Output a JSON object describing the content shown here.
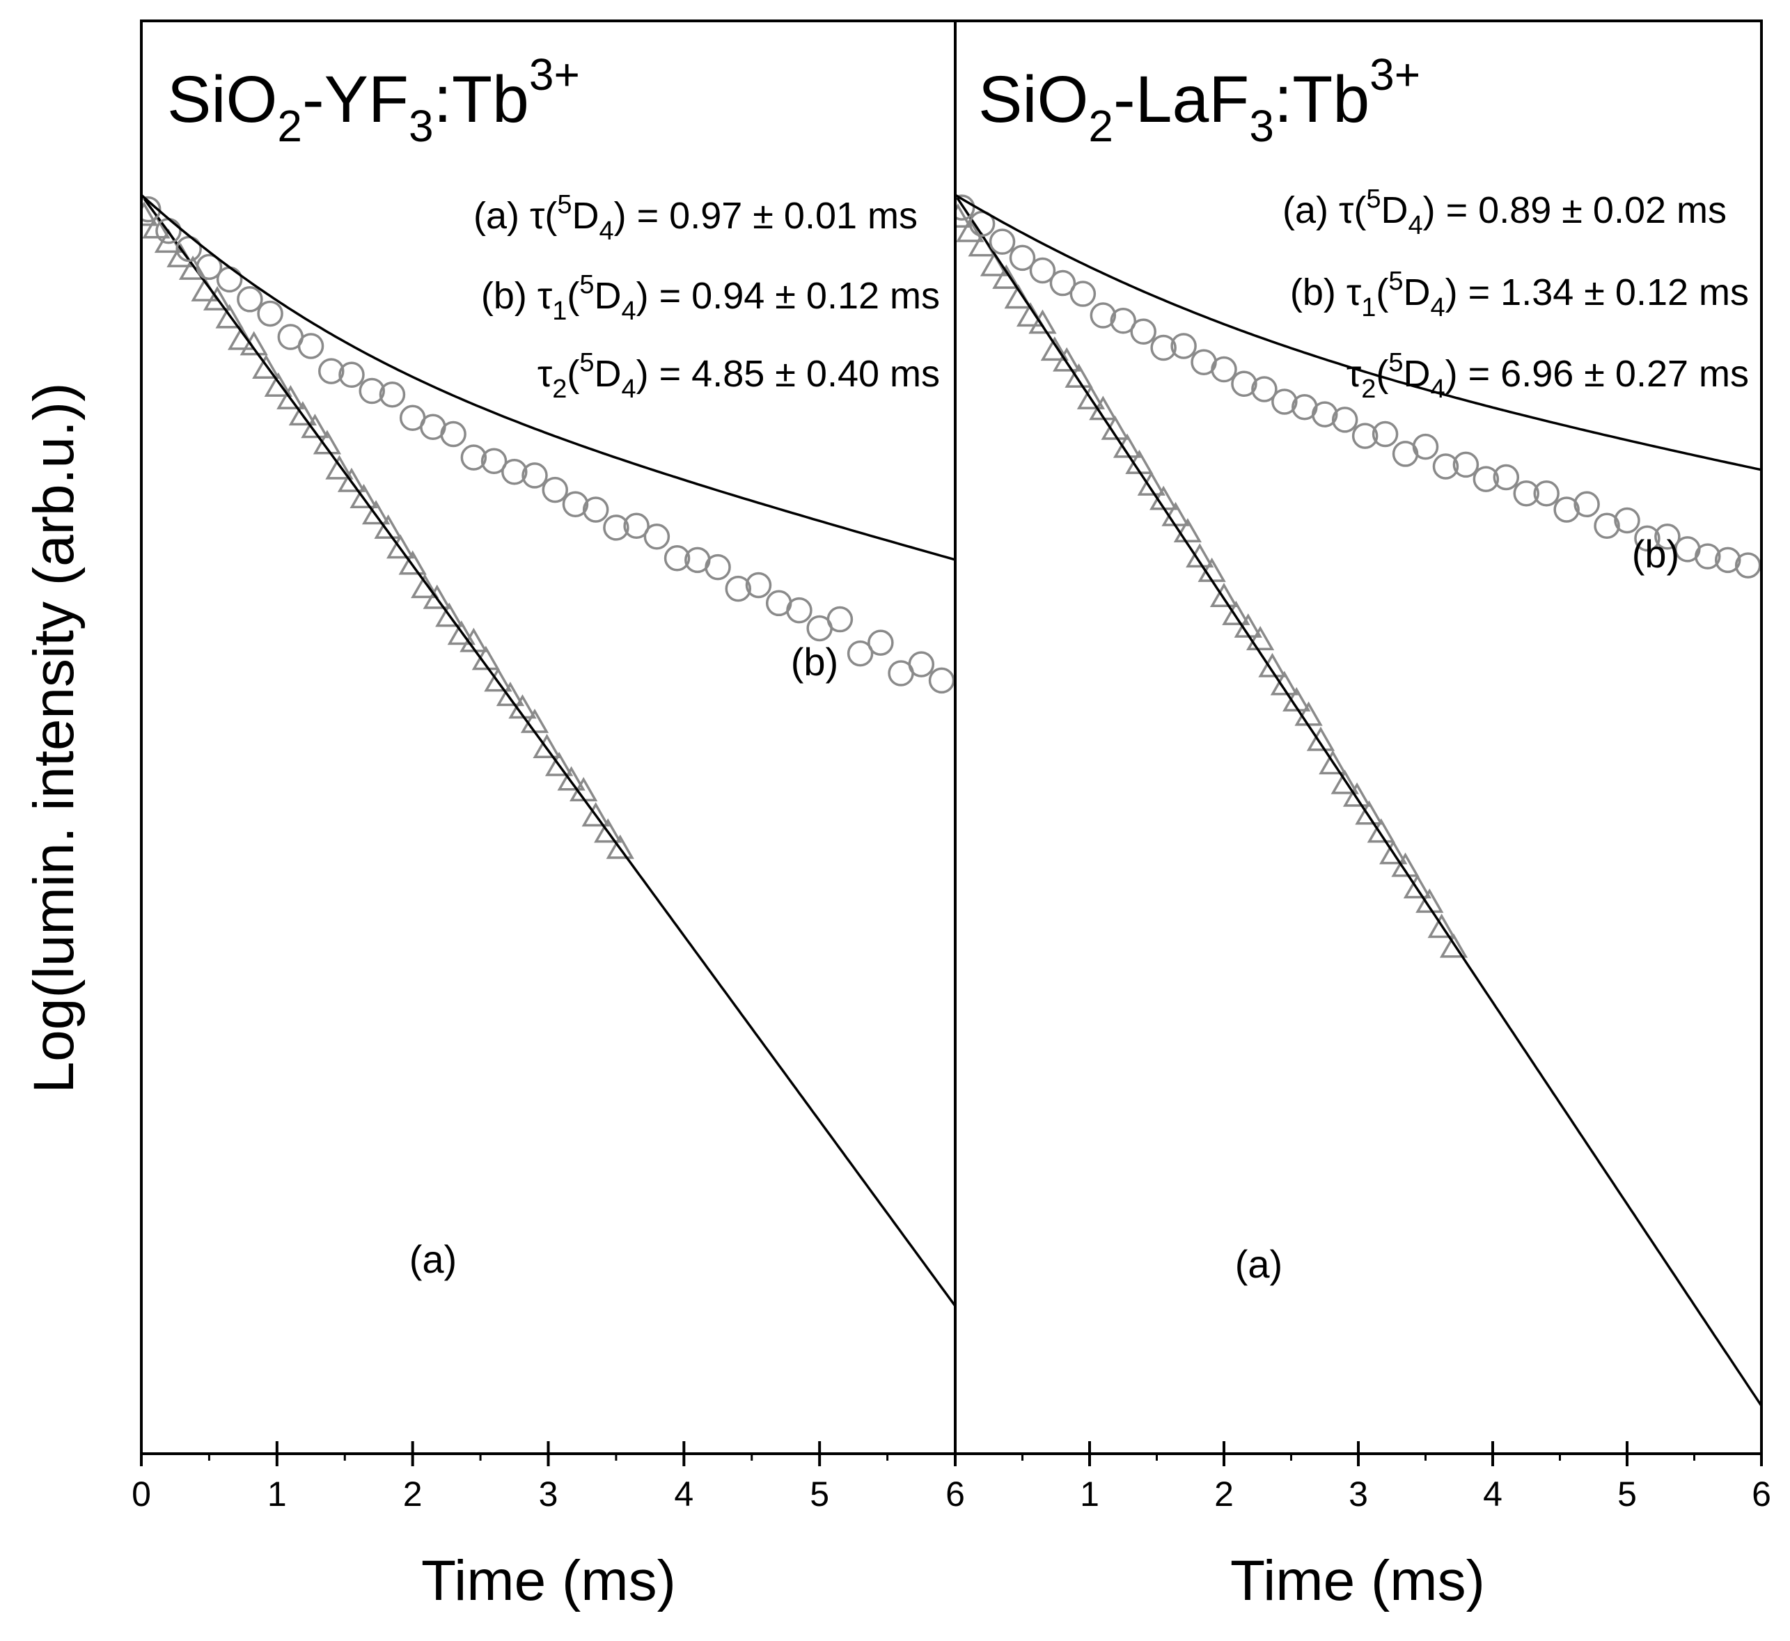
{
  "colors": {
    "marker": "#8a8a8a",
    "fit": "#000000",
    "frame": "#000000"
  },
  "chart_data": [
    {
      "type": "scatter",
      "title": {
        "main": "SiO",
        "sub1": "2",
        "mid": "-YF",
        "sub2": "3",
        "end": ":Tb",
        "sup": "3+"
      },
      "xlabel": "Time (ms)",
      "ylabel": "Log(lumin. intensity (arb.u.))",
      "xlim": [
        0,
        6
      ],
      "xticks": [
        "0",
        "1",
        "2",
        "3",
        "4",
        "5",
        "6"
      ],
      "yticks": [],
      "ylim": [
        -7,
        0.6
      ],
      "legend": "none",
      "annotations": [
        {
          "prefix": "(a) ",
          "sym": "τ",
          "sub": "",
          "open": "(",
          "sup": "5",
          "D": "D",
          "dsub": "4",
          "rest": ") = 0.97 ± 0.01 ms"
        },
        {
          "prefix": "(b) ",
          "sym": "τ",
          "sub": "1",
          "open": "(",
          "sup": "5",
          "D": "D",
          "dsub": "4",
          "rest": ") = 0.94 ± 0.12 ms"
        },
        {
          "prefix": "",
          "sym": "τ",
          "sub": "2",
          "open": "(",
          "sup": "5",
          "D": "D",
          "dsub": "4",
          "rest": ") = 4.85 ± 0.40 ms"
        }
      ],
      "series": [
        {
          "label": "(a)",
          "marker": "triangle-open",
          "fit": {
            "model": "single-exponential",
            "tau_ms": 0.97
          },
          "x": [
            0.02,
            0.11,
            0.2,
            0.29,
            0.38,
            0.47,
            0.56,
            0.65,
            0.74,
            0.83,
            0.92,
            1.01,
            1.1,
            1.19,
            1.28,
            1.37,
            1.46,
            1.55,
            1.64,
            1.73,
            1.82,
            1.91,
            2.0,
            2.09,
            2.18,
            2.27,
            2.36,
            2.45,
            2.54,
            2.63,
            2.72,
            2.81,
            2.9,
            2.99,
            3.08,
            3.17,
            3.26,
            3.35,
            3.44,
            3.53
          ],
          "y": [
            -0.12,
            -0.19,
            -0.27,
            -0.35,
            -0.42,
            -0.54,
            -0.59,
            -0.69,
            -0.81,
            -0.84,
            -0.97,
            -1.07,
            -1.14,
            -1.23,
            -1.3,
            -1.39,
            -1.53,
            -1.6,
            -1.69,
            -1.78,
            -1.86,
            -1.97,
            -2.06,
            -2.19,
            -2.25,
            -2.35,
            -2.45,
            -2.49,
            -2.59,
            -2.71,
            -2.79,
            -2.86,
            -2.94,
            -3.08,
            -3.18,
            -3.26,
            -3.32,
            -3.46,
            -3.55,
            -3.64
          ]
        },
        {
          "label": "(b)",
          "marker": "circle-open",
          "fit": {
            "model": "bi-exponential",
            "tau1_ms": 0.94,
            "tau2_ms": 4.85,
            "a1": 0.55,
            "a2": 0.45
          },
          "x": [
            0.05,
            0.2,
            0.35,
            0.5,
            0.65,
            0.8,
            0.95,
            1.1,
            1.25,
            1.4,
            1.55,
            1.7,
            1.85,
            2.0,
            2.15,
            2.3,
            2.45,
            2.6,
            2.75,
            2.9,
            3.05,
            3.2,
            3.35,
            3.5,
            3.65,
            3.8,
            3.95,
            4.1,
            4.25,
            4.4,
            4.55,
            4.7,
            4.85,
            5.0,
            5.15,
            5.3,
            5.45,
            5.6,
            5.75,
            5.9
          ],
          "y": [
            -0.08,
            -0.2,
            -0.3,
            -0.4,
            -0.47,
            -0.58,
            -0.66,
            -0.79,
            -0.84,
            -0.98,
            -1.0,
            -1.09,
            -1.11,
            -1.24,
            -1.29,
            -1.33,
            -1.46,
            -1.48,
            -1.54,
            -1.56,
            -1.64,
            -1.72,
            -1.75,
            -1.85,
            -1.84,
            -1.9,
            -2.02,
            -2.03,
            -2.07,
            -2.19,
            -2.17,
            -2.27,
            -2.31,
            -2.41,
            -2.36,
            -2.55,
            -2.49,
            -2.66,
            -2.61,
            -2.7
          ]
        }
      ]
    },
    {
      "type": "scatter",
      "title": {
        "main": "SiO",
        "sub1": "2",
        "mid": "-LaF",
        "sub2": "3",
        "end": ":Tb",
        "sup": "3+"
      },
      "xlabel": "Time (ms)",
      "xlim": [
        0,
        6
      ],
      "xticks": [
        "",
        "1",
        "2",
        "3",
        "4",
        "5",
        "6"
      ],
      "yticks": [],
      "ylim": [
        -7,
        0.6
      ],
      "legend": "none",
      "annotations": [
        {
          "prefix": "(a) ",
          "sym": "τ",
          "sub": "",
          "open": "(",
          "sup": "5",
          "D": "D",
          "dsub": "4",
          "rest": ") = 0.89 ± 0.02 ms"
        },
        {
          "prefix": "(b) ",
          "sym": "τ",
          "sub": "1",
          "open": "(",
          "sup": "5",
          "D": "D",
          "dsub": "4",
          "rest": ") = 1.34 ± 0.12 ms"
        },
        {
          "prefix": "",
          "sym": "τ",
          "sub": "2",
          "open": "(",
          "sup": "5",
          "D": "D",
          "dsub": "4",
          "rest": ") = 6.96 ± 0.27 ms"
        }
      ],
      "series": [
        {
          "label": "(a)",
          "marker": "triangle-open",
          "fit": {
            "model": "single-exponential",
            "tau_ms": 0.89
          },
          "x": [
            0.02,
            0.11,
            0.2,
            0.29,
            0.38,
            0.47,
            0.56,
            0.65,
            0.74,
            0.83,
            0.92,
            1.01,
            1.1,
            1.19,
            1.28,
            1.37,
            1.46,
            1.55,
            1.64,
            1.73,
            1.82,
            1.91,
            2.0,
            2.09,
            2.18,
            2.27,
            2.36,
            2.45,
            2.54,
            2.63,
            2.72,
            2.81,
            2.9,
            2.99,
            3.08,
            3.17,
            3.26,
            3.35,
            3.44,
            3.53,
            3.62,
            3.71
          ],
          "y": [
            -0.13,
            -0.21,
            -0.29,
            -0.4,
            -0.47,
            -0.58,
            -0.68,
            -0.72,
            -0.87,
            -0.93,
            -1.02,
            -1.14,
            -1.2,
            -1.31,
            -1.41,
            -1.5,
            -1.62,
            -1.7,
            -1.79,
            -1.88,
            -2.02,
            -2.1,
            -2.24,
            -2.34,
            -2.41,
            -2.48,
            -2.63,
            -2.73,
            -2.82,
            -2.9,
            -3.04,
            -3.17,
            -3.28,
            -3.35,
            -3.45,
            -3.55,
            -3.67,
            -3.74,
            -3.86,
            -3.94,
            -4.08,
            -4.19
          ]
        },
        {
          "label": "(b)",
          "marker": "circle-open",
          "fit": {
            "model": "bi-exponential",
            "tau1_ms": 1.34,
            "tau2_ms": 6.96,
            "a1": 0.5,
            "a2": 0.5
          },
          "x": [
            0.05,
            0.2,
            0.35,
            0.5,
            0.65,
            0.8,
            0.95,
            1.1,
            1.25,
            1.4,
            1.55,
            1.7,
            1.85,
            2.0,
            2.15,
            2.3,
            2.45,
            2.6,
            2.75,
            2.9,
            3.05,
            3.2,
            3.35,
            3.5,
            3.65,
            3.8,
            3.95,
            4.1,
            4.25,
            4.4,
            4.55,
            4.7,
            4.85,
            5.0,
            5.15,
            5.3,
            5.45,
            5.6,
            5.75,
            5.9
          ],
          "y": [
            -0.07,
            -0.16,
            -0.26,
            -0.35,
            -0.42,
            -0.49,
            -0.55,
            -0.67,
            -0.7,
            -0.76,
            -0.85,
            -0.84,
            -0.93,
            -0.97,
            -1.05,
            -1.08,
            -1.15,
            -1.18,
            -1.22,
            -1.25,
            -1.34,
            -1.33,
            -1.44,
            -1.4,
            -1.51,
            -1.5,
            -1.58,
            -1.57,
            -1.66,
            -1.66,
            -1.75,
            -1.72,
            -1.84,
            -1.81,
            -1.91,
            -1.9,
            -1.97,
            -2.01,
            -2.03,
            -2.06
          ]
        }
      ]
    }
  ]
}
